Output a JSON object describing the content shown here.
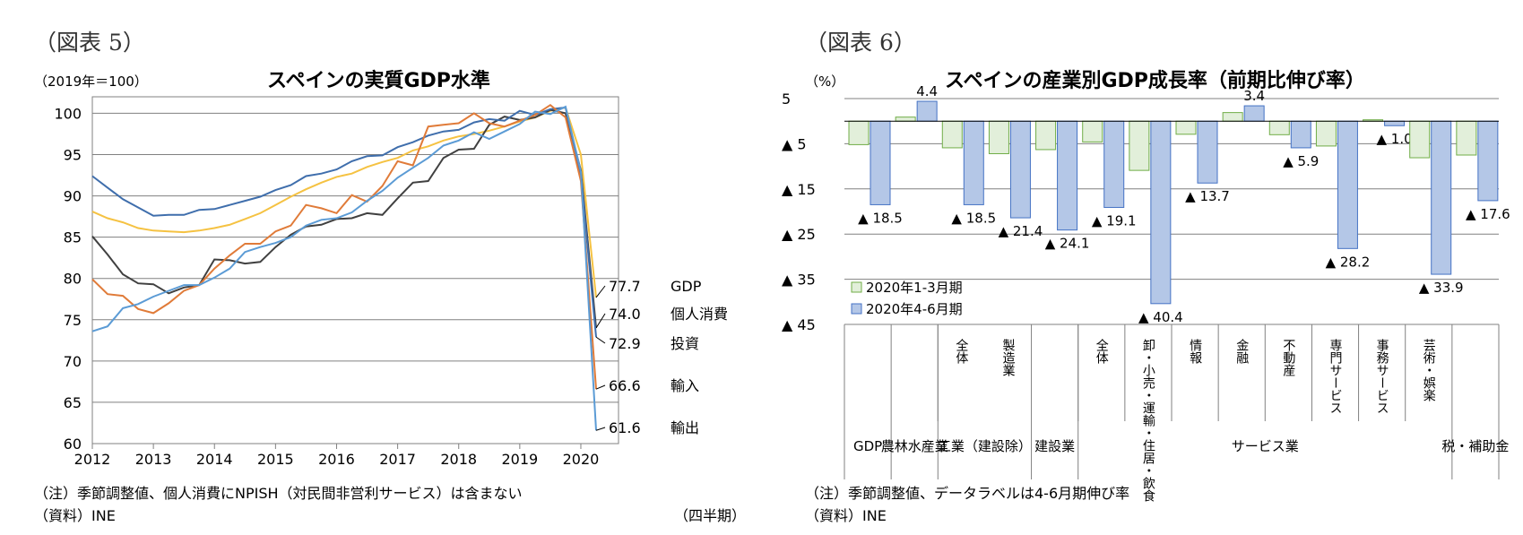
{
  "left": {
    "figure_label": "（図表 5）",
    "unit_note": "（2019年＝100）",
    "title": "スペインの実質GDP水準",
    "note": "（注）季節調整値、個人消費にNPISH（対民間非営利サービス）は含まない",
    "source": "（資料）INE",
    "xaxis_note": "（四半期）"
  },
  "right": {
    "figure_label": "（図表 6）",
    "unit_note": "（%）",
    "title": "スペインの産業別GDP成長率（前期比伸び率）",
    "note": "（注）季節調整値、データラベルは4-6月期伸び率",
    "source": "（資料）INE"
  },
  "chart_data": [
    {
      "type": "line",
      "title": "スペインの実質GDP水準",
      "ylabel": "（2019年＝100）",
      "xlabel": "（四半期）",
      "ylim": [
        60,
        102
      ],
      "yticks": [
        60,
        65,
        70,
        75,
        80,
        85,
        90,
        95,
        100
      ],
      "xticks": [
        "2012",
        "2013",
        "2014",
        "2015",
        "2016",
        "2017",
        "2018",
        "2019",
        "2020"
      ],
      "grid": true,
      "x": [
        "2012Q1",
        "2012Q2",
        "2012Q3",
        "2012Q4",
        "2013Q1",
        "2013Q2",
        "2013Q3",
        "2013Q4",
        "2014Q1",
        "2014Q2",
        "2014Q3",
        "2014Q4",
        "2015Q1",
        "2015Q2",
        "2015Q3",
        "2015Q4",
        "2016Q1",
        "2016Q2",
        "2016Q3",
        "2016Q4",
        "2017Q1",
        "2017Q2",
        "2017Q3",
        "2017Q4",
        "2018Q1",
        "2018Q2",
        "2018Q3",
        "2018Q4",
        "2019Q1",
        "2019Q2",
        "2019Q3",
        "2019Q4",
        "2020Q1",
        "2020Q2"
      ],
      "series": [
        {
          "name": "GDP",
          "color": "#f5c242",
          "end_label": "77.7",
          "values": [
            88.1,
            87.3,
            86.8,
            86.1,
            85.8,
            85.7,
            85.6,
            85.8,
            86.1,
            86.5,
            87.2,
            87.9,
            88.9,
            89.9,
            90.8,
            91.6,
            92.3,
            92.7,
            93.5,
            94.1,
            94.6,
            95.5,
            96.0,
            96.7,
            97.2,
            97.5,
            97.9,
            98.4,
            99.0,
            99.5,
            100.3,
            100.7,
            95.0,
            77.7
          ]
        },
        {
          "name": "個人消費",
          "color": "#404040",
          "end_label": "74.0",
          "values": [
            85.1,
            82.9,
            80.5,
            79.4,
            79.3,
            78.2,
            78.9,
            79.2,
            82.3,
            82.2,
            81.8,
            82.0,
            83.8,
            85.3,
            86.3,
            86.5,
            87.2,
            87.3,
            87.9,
            87.7,
            89.7,
            91.6,
            91.8,
            94.6,
            95.6,
            95.7,
            98.6,
            99.6,
            99.2,
            99.5,
            100.4,
            100.0,
            93.1,
            74.0
          ]
        },
        {
          "name": "投資",
          "color": "#3f6eac",
          "end_label": "72.9",
          "values": [
            92.4,
            91.0,
            89.6,
            88.6,
            87.6,
            87.7,
            87.7,
            88.3,
            88.4,
            88.9,
            89.4,
            89.9,
            90.7,
            91.3,
            92.4,
            92.7,
            93.2,
            94.2,
            94.8,
            94.9,
            95.9,
            96.5,
            97.3,
            97.8,
            98.0,
            98.9,
            99.3,
            99.1,
            100.3,
            99.8,
            100.5,
            100.7,
            92.5,
            72.9
          ]
        },
        {
          "name": "輸入",
          "color": "#e07b39",
          "end_label": "66.6",
          "values": [
            79.9,
            78.1,
            77.9,
            76.3,
            75.8,
            77.0,
            78.5,
            79.2,
            81.2,
            82.8,
            84.2,
            84.2,
            85.7,
            86.4,
            88.9,
            88.5,
            87.9,
            90.1,
            89.3,
            91.2,
            94.2,
            93.7,
            98.4,
            98.6,
            98.8,
            100.0,
            98.8,
            98.4,
            99.1,
            99.8,
            101.0,
            99.5,
            91.8,
            66.6
          ]
        },
        {
          "name": "輸出",
          "color": "#5b9bd5",
          "end_label": "61.6",
          "values": [
            73.6,
            74.2,
            76.4,
            76.9,
            77.8,
            78.5,
            79.2,
            79.2,
            80.1,
            81.2,
            83.2,
            83.8,
            84.3,
            85.0,
            86.4,
            87.1,
            87.3,
            88.0,
            89.4,
            90.6,
            92.2,
            93.4,
            94.6,
            96.1,
            96.7,
            97.7,
            96.9,
            97.8,
            98.7,
            100.2,
            99.9,
            100.8,
            92.9,
            61.6
          ]
        }
      ]
    },
    {
      "type": "bar",
      "title": "スペインの産業別GDP成長率（前期比伸び率）",
      "ylabel": "（%）",
      "ylim": [
        -45,
        5
      ],
      "yticks": [
        5,
        -5,
        -15,
        -25,
        -35,
        -45
      ],
      "ytick_labels": [
        "5",
        "▲ 5",
        "▲ 15",
        "▲ 25",
        "▲ 35",
        "▲ 45"
      ],
      "legend_position": "bottom-left",
      "categories": [
        "GDP",
        "農林水産業",
        "工業全体",
        "製造業",
        "建設業",
        "サービス業全体",
        "卸・小売・運輸・住居・飲食",
        "情報",
        "金融",
        "不動産",
        "専門サービス",
        "事務サービス",
        "芸術・娯楽",
        "税・補助金"
      ],
      "category_axis_labels": [
        {
          "text": "GDP",
          "group": [
            "GDP"
          ]
        },
        {
          "text": "農林水産業",
          "group": [
            "農林水産業"
          ]
        },
        {
          "text": "全体",
          "vertical": true
        },
        {
          "text": "製造業",
          "vertical": true
        },
        {
          "text": "工業（建設除）",
          "group": [
            "工業全体",
            "製造業"
          ]
        },
        {
          "text": "建設業",
          "group": [
            "建設業"
          ]
        },
        {
          "text": "全体",
          "vertical": true
        },
        {
          "text": "卸・小売・運輸・住居・飲食",
          "vertical": true
        },
        {
          "text": "情報",
          "vertical": true
        },
        {
          "text": "金融",
          "vertical": true
        },
        {
          "text": "不動産",
          "vertical": true
        },
        {
          "text": "専門サービス",
          "vertical": true
        },
        {
          "text": "事務サービス",
          "vertical": true
        },
        {
          "text": "芸術・娯楽",
          "vertical": true
        },
        {
          "text": "サービス業",
          "group": [
            "サービス業全体",
            "卸・小売・運輸・住居・飲食",
            "情報",
            "金融",
            "不動産",
            "専門サービス",
            "事務サービス",
            "芸術・娯楽"
          ]
        },
        {
          "text": "税・補助金",
          "group": [
            "税・補助金"
          ]
        }
      ],
      "series": [
        {
          "name": "2020年1-3月期",
          "color": "#e2efda",
          "stroke": "#70ad47",
          "values": [
            -5.2,
            0.9,
            -5.9,
            -7.2,
            -6.3,
            -4.6,
            -10.9,
            -2.9,
            1.9,
            -3.0,
            -5.5,
            0.3,
            -8.1,
            -7.5
          ]
        },
        {
          "name": "2020年4-6月期",
          "color": "#b4c7e7",
          "stroke": "#4472c4",
          "values": [
            -18.5,
            4.4,
            -18.5,
            -21.4,
            -24.1,
            -19.1,
            -40.4,
            -13.7,
            3.4,
            -5.9,
            -28.2,
            -1.0,
            -33.9,
            -17.6
          ]
        }
      ],
      "data_labels": [
        "▲ 18.5",
        "4.4",
        "▲ 18.5",
        "▲ 21.4",
        "▲ 24.1",
        "▲ 19.1",
        "▲ 40.4",
        "▲ 13.7",
        "3.4",
        "▲ 5.9",
        "▲ 28.2",
        "▲ 1.0",
        "▲ 33.9",
        "▲ 17.6"
      ]
    }
  ]
}
